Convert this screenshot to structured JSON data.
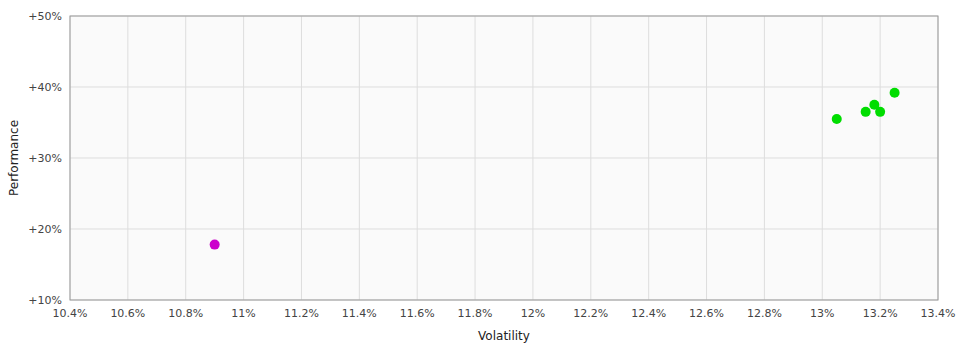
{
  "chart_data": {
    "type": "scatter",
    "xlabel": "Volatility",
    "ylabel": "Performance",
    "xlim": [
      0.104,
      0.134
    ],
    "ylim": [
      0.1,
      0.5
    ],
    "xticks": [
      {
        "value": 0.104,
        "label": "10.4%"
      },
      {
        "value": 0.106,
        "label": "10.6%"
      },
      {
        "value": 0.108,
        "label": "10.8%"
      },
      {
        "value": 0.11,
        "label": "11%"
      },
      {
        "value": 0.112,
        "label": "11.2%"
      },
      {
        "value": 0.114,
        "label": "11.4%"
      },
      {
        "value": 0.116,
        "label": "11.6%"
      },
      {
        "value": 0.118,
        "label": "11.8%"
      },
      {
        "value": 0.12,
        "label": "12%"
      },
      {
        "value": 0.122,
        "label": "12.2%"
      },
      {
        "value": 0.124,
        "label": "12.4%"
      },
      {
        "value": 0.126,
        "label": "12.6%"
      },
      {
        "value": 0.128,
        "label": "12.8%"
      },
      {
        "value": 0.13,
        "label": "13%"
      },
      {
        "value": 0.132,
        "label": "13.2%"
      },
      {
        "value": 0.134,
        "label": "13.4%"
      }
    ],
    "yticks": [
      {
        "value": 0.1,
        "label": "+10%"
      },
      {
        "value": 0.2,
        "label": "+20%"
      },
      {
        "value": 0.3,
        "label": "+30%"
      },
      {
        "value": 0.4,
        "label": "+40%"
      },
      {
        "value": 0.5,
        "label": "+50%"
      }
    ],
    "grid": true,
    "series": [
      {
        "color": "#00dd00",
        "x": [
          0.1305,
          0.1315,
          0.1318,
          0.132,
          0.1325
        ],
        "values": [
          0.355,
          0.365,
          0.375,
          0.365,
          0.392
        ]
      },
      {
        "color": "#cc00cc",
        "x": [
          0.109
        ],
        "values": [
          0.178
        ]
      }
    ]
  }
}
